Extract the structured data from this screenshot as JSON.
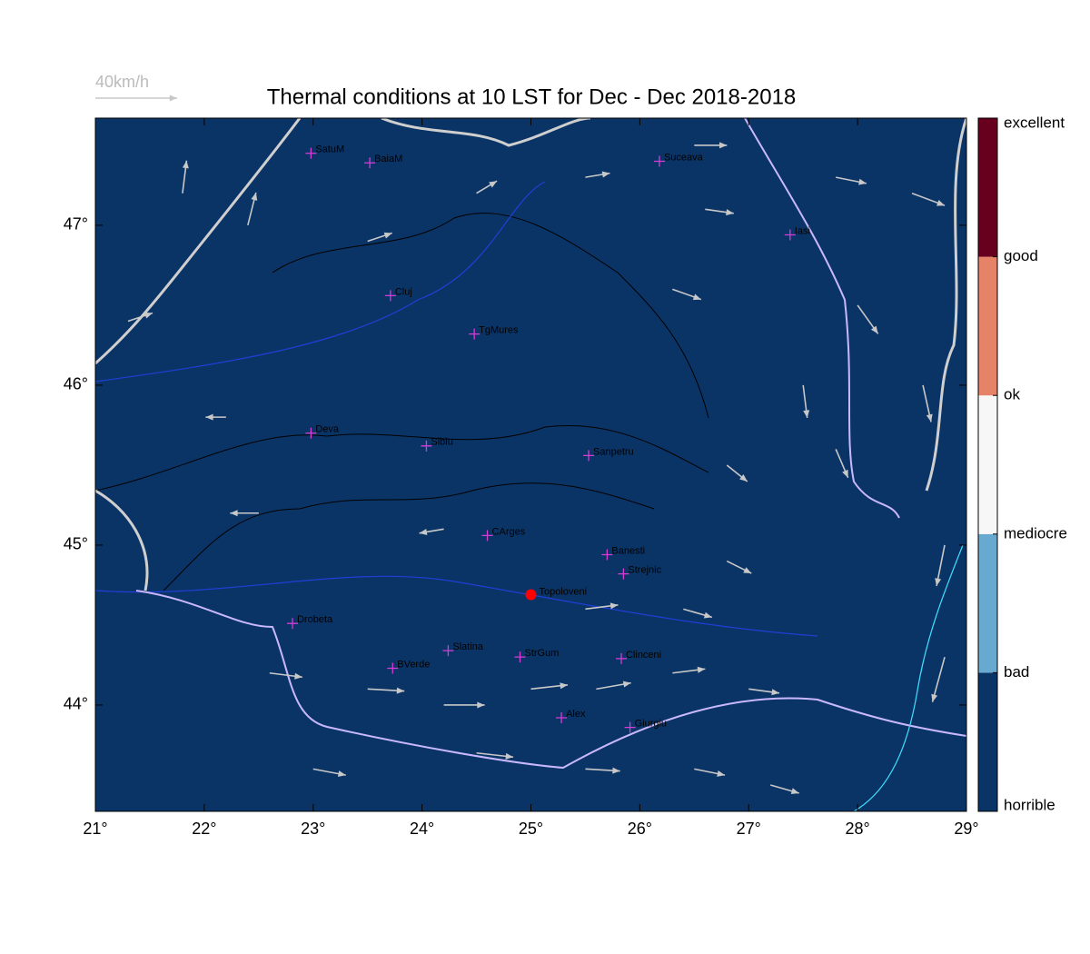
{
  "map": {
    "title": "Thermal conditions at 10 LST for Dec - Dec  2018-2018",
    "wind_scale": {
      "label": "40km/h",
      "value": 40
    },
    "xlim": [
      21,
      29.0
    ],
    "ylim": [
      43.335,
      47.67
    ],
    "xticks": [
      {
        "value": 21,
        "label": "21°"
      },
      {
        "value": 22,
        "label": "22°"
      },
      {
        "value": 23,
        "label": "23°"
      },
      {
        "value": 24,
        "label": "24°"
      },
      {
        "value": 25,
        "label": "25°"
      },
      {
        "value": 26,
        "label": "26°"
      },
      {
        "value": 27,
        "label": "27°"
      },
      {
        "value": 28,
        "label": "28°"
      },
      {
        "value": 29,
        "label": "29°"
      }
    ],
    "yticks": [
      {
        "value": 44,
        "label": "44°"
      },
      {
        "value": 45,
        "label": "45°"
      },
      {
        "value": 46,
        "label": "46°"
      },
      {
        "value": 47,
        "label": "47°"
      }
    ],
    "background": "#0b3466",
    "colorbar": {
      "labels": [
        "horrible",
        "bad",
        "mediocre",
        "ok",
        "good",
        "excellent"
      ],
      "colors": [
        "#0b3466",
        "#67a9cf",
        "#f7f7f7",
        "#e58267",
        "#67001f"
      ]
    },
    "cities": [
      {
        "name": "SatuM",
        "lon": 22.98,
        "lat": 47.45
      },
      {
        "name": "BaiaM",
        "lon": 23.52,
        "lat": 47.39
      },
      {
        "name": "Suceava",
        "lon": 26.18,
        "lat": 47.4
      },
      {
        "name": "Iasi",
        "lon": 27.38,
        "lat": 46.94
      },
      {
        "name": "Cluj",
        "lon": 23.71,
        "lat": 46.56
      },
      {
        "name": "TgMures",
        "lon": 24.48,
        "lat": 46.32
      },
      {
        "name": "Deva",
        "lon": 22.98,
        "lat": 45.7
      },
      {
        "name": "Sibiu",
        "lon": 24.04,
        "lat": 45.62
      },
      {
        "name": "Sanpetru",
        "lon": 25.53,
        "lat": 45.56
      },
      {
        "name": "CArges",
        "lon": 24.6,
        "lat": 45.06
      },
      {
        "name": "Banesti",
        "lon": 25.7,
        "lat": 44.94
      },
      {
        "name": "Strejnic",
        "lon": 25.85,
        "lat": 44.82
      },
      {
        "name": "Drobeta",
        "lon": 22.81,
        "lat": 44.51
      },
      {
        "name": "Slatina",
        "lon": 24.24,
        "lat": 44.34
      },
      {
        "name": "StrGum",
        "lon": 24.9,
        "lat": 44.3
      },
      {
        "name": "Clinceni",
        "lon": 25.83,
        "lat": 44.29
      },
      {
        "name": "BVerde",
        "lon": 23.73,
        "lat": 44.23
      },
      {
        "name": "Alex",
        "lon": 25.28,
        "lat": 43.92
      },
      {
        "name": "Giurgiu",
        "lon": 25.91,
        "lat": 43.86
      }
    ],
    "site": {
      "name": "Topoloveni",
      "lon": 25.0,
      "lat": 44.69,
      "color": "#ff0000"
    },
    "wind": [
      [
        23.5,
        44.1,
        18,
        -1
      ],
      [
        24.2,
        44.0,
        20,
        0
      ],
      [
        25.0,
        44.1,
        18,
        2
      ],
      [
        25.6,
        44.1,
        17,
        3
      ],
      [
        26.3,
        44.2,
        16,
        2
      ],
      [
        27.0,
        44.1,
        15,
        -2
      ],
      [
        22.6,
        44.2,
        16,
        -2
      ],
      [
        24.5,
        43.7,
        18,
        -2
      ],
      [
        25.5,
        43.6,
        17,
        -1
      ],
      [
        26.5,
        43.6,
        15,
        -3
      ],
      [
        27.2,
        43.5,
        14,
        -4
      ],
      [
        23.0,
        43.6,
        16,
        -3
      ],
      [
        25.5,
        44.6,
        16,
        2
      ],
      [
        26.4,
        44.6,
        14,
        -4
      ],
      [
        26.8,
        44.9,
        12,
        -6
      ],
      [
        24.2,
        45.1,
        -12,
        -2
      ],
      [
        22.5,
        45.2,
        -14,
        0
      ],
      [
        28.0,
        46.5,
        10,
        -14
      ],
      [
        28.6,
        46.0,
        4,
        -18
      ],
      [
        27.5,
        46.0,
        2,
        -16
      ],
      [
        28.8,
        45.0,
        -4,
        -20
      ],
      [
        28.8,
        44.3,
        -6,
        -22
      ],
      [
        27.8,
        45.6,
        6,
        -14
      ],
      [
        28.5,
        47.2,
        16,
        -6
      ],
      [
        27.8,
        47.3,
        15,
        -3
      ],
      [
        26.6,
        47.1,
        14,
        -2
      ],
      [
        26.3,
        46.6,
        14,
        -5
      ],
      [
        26.8,
        45.5,
        10,
        -8
      ],
      [
        21.8,
        47.2,
        2,
        16
      ],
      [
        22.4,
        47.0,
        4,
        16
      ],
      [
        21.3,
        46.4,
        12,
        4
      ],
      [
        22.2,
        45.8,
        -10,
        0
      ],
      [
        23.5,
        46.9,
        12,
        4
      ],
      [
        24.5,
        47.2,
        10,
        6
      ],
      [
        25.5,
        47.3,
        12,
        2
      ],
      [
        26.5,
        47.5,
        16,
        0
      ]
    ],
    "wind_color": "#c8c8c8"
  }
}
